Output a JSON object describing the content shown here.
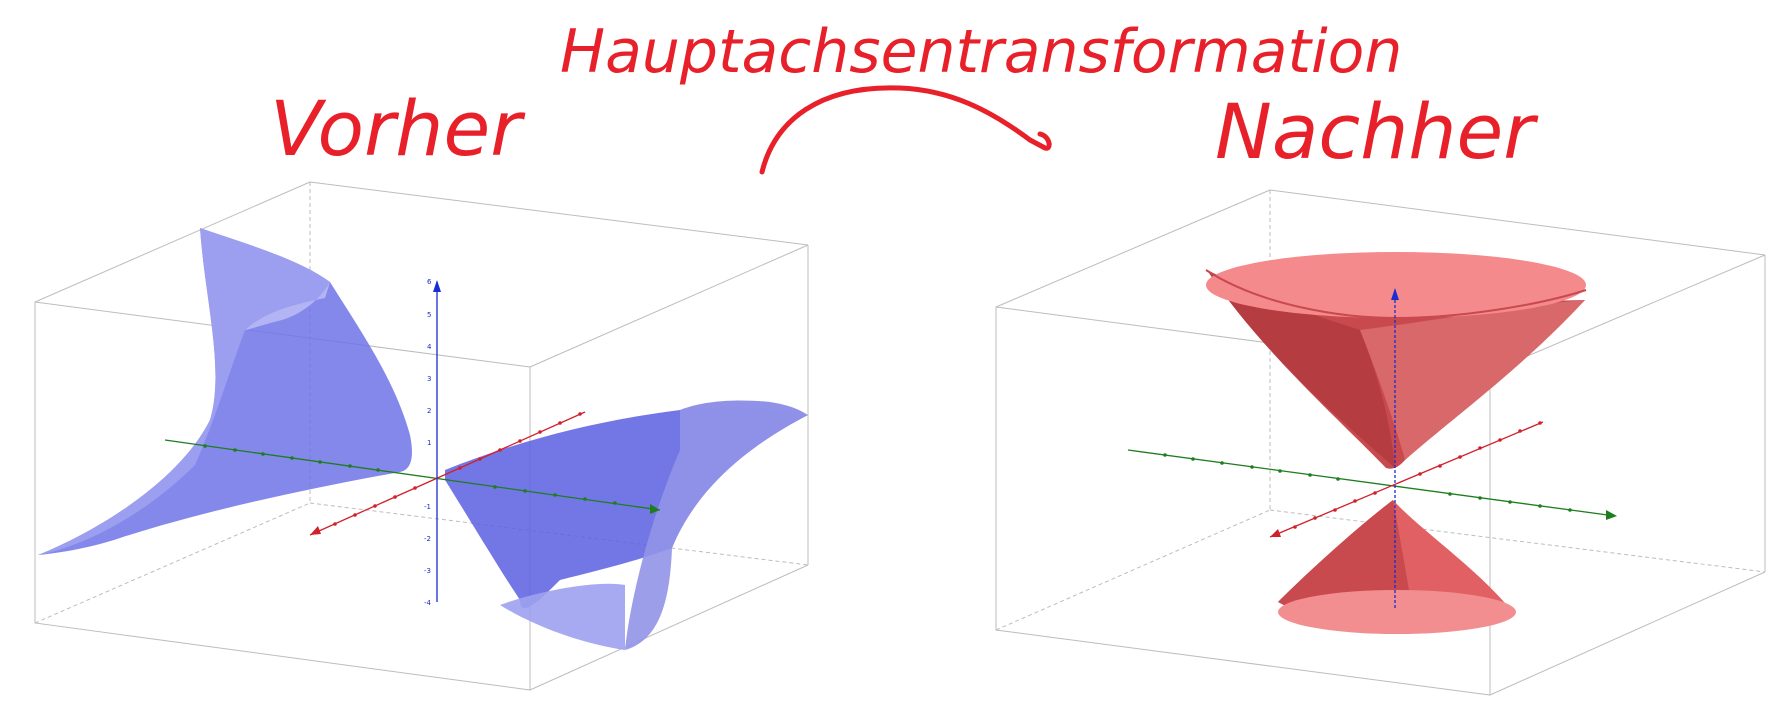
{
  "header": {
    "title": "Hauptachsentransformation"
  },
  "panels": {
    "before": {
      "label": "Vorher"
    },
    "after": {
      "label": "Nachher"
    }
  },
  "colors": {
    "handwriting": "#e8202a",
    "surface_before": "#5a5fe0",
    "surface_after": "#e35a5c",
    "axis_x": "#d0202a",
    "axis_y": "#1e7d1e",
    "axis_z": "#1a2dd0",
    "box": "#b8b8b8"
  },
  "axes": {
    "before_z_ticks": [
      "6",
      "5",
      "4",
      "3",
      "2",
      "1",
      "-1",
      "-2",
      "-3",
      "-4"
    ]
  }
}
